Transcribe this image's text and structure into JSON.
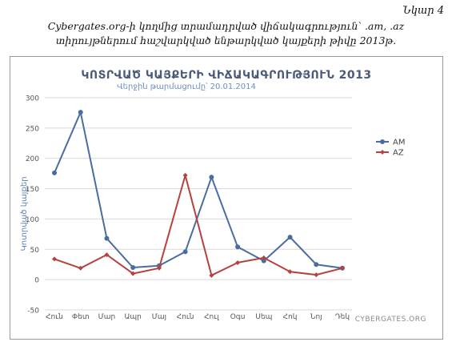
{
  "figure_label": "Նկար 4",
  "caption": {
    "line1": "Cybergates.org-ի կողմից տրամադրված վիճակագրություն՝ .am, .az",
    "line2": "տիրույթներում հաշվարկված ենթարկված կայքերի թիվը 2013թ."
  },
  "chart_data": {
    "type": "line",
    "title": "ԿՈՏՐՎԱԾ ԿԱՅՔԵՐԻ ՎԻՃԱԿԱԳՐՈՒԹՅՈՒՆ 2013",
    "subtitle": "Վերջին թարմացումը՝ 20.01.2014",
    "xlabel": "",
    "ylabel": "Կոտրված կայքեր",
    "categories": [
      "Հուն",
      "Փետ",
      "Մար",
      "Ապր",
      "Մայ",
      "Հուն",
      "Հուլ",
      "Օգս",
      "Սեպ",
      "Հոկ",
      "Նոյ",
      "Դեկ"
    ],
    "series": [
      {
        "name": "AM",
        "color": "#4a6da1",
        "values": [
          176,
          276,
          68,
          20,
          23,
          46,
          169,
          54,
          31,
          70,
          25,
          19
        ]
      },
      {
        "name": "AZ",
        "color": "#b5423e",
        "values": [
          34,
          19,
          41,
          10,
          19,
          172,
          7,
          28,
          36,
          13,
          8,
          19
        ]
      }
    ],
    "ylim": [
      -50,
      300
    ],
    "yticks": [
      -50,
      0,
      50,
      100,
      150,
      200,
      250,
      300
    ],
    "grid": true,
    "legend": "right",
    "watermark": "CYBERGATES.ORG"
  }
}
